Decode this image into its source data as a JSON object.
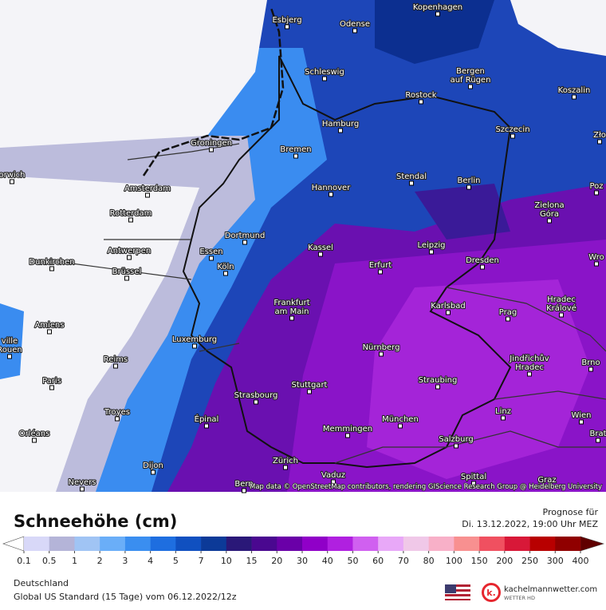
{
  "map": {
    "cities": [
      [
        "Esbjerg"
      ],
      [
        "Odense"
      ],
      [
        "Kopenhagen"
      ],
      [
        "Schleswig"
      ],
      [
        "Bergen",
        "auf Rügen"
      ],
      [
        "Rostock"
      ],
      [
        "Koszalin"
      ],
      [
        "Hamburg"
      ],
      [
        "Szczecin"
      ],
      [
        "Groningen"
      ],
      [
        "Bremen"
      ],
      [
        "Zło"
      ],
      [
        "orwich"
      ],
      [
        "Amsterdam"
      ],
      [
        "Hannover"
      ],
      [
        "Stendal"
      ],
      [
        "Berlin"
      ],
      [
        "Poz"
      ],
      [
        "Rotterdam"
      ],
      [
        "Zielona",
        "Góra"
      ],
      [
        "Dortmund"
      ],
      [
        "Leipzig"
      ],
      [
        "Antwerpen"
      ],
      [
        "Essen"
      ],
      [
        "Kassel"
      ],
      [
        "Dunkirchen"
      ],
      [
        "Erfurt"
      ],
      [
        "Dresden"
      ],
      [
        "Wro"
      ],
      [
        "Brüssel"
      ],
      [
        "Köln"
      ],
      [
        "Frankfurt",
        "am Main"
      ],
      [
        "Karlsbad"
      ],
      [
        "Hradec",
        "Králové"
      ],
      [
        "Prag"
      ],
      [
        "Amiens"
      ],
      [
        "ville",
        "Rouen"
      ],
      [
        "Luxemburg"
      ],
      [
        "Nürnberg"
      ],
      [
        "Jindřichův",
        "Hradec"
      ],
      [
        "Brno"
      ],
      [
        "Reims"
      ],
      [
        "Paris"
      ],
      [
        "Straubing"
      ],
      [
        "Stuttgart"
      ],
      [
        "Strasbourg"
      ],
      [
        "Troyes"
      ],
      [
        "Linz"
      ],
      [
        "Wien"
      ],
      [
        "Épinal"
      ],
      [
        "München"
      ],
      [
        "Memmingen"
      ],
      [
        "Orléans"
      ],
      [
        "Brat"
      ],
      [
        "Salzburg"
      ],
      [
        "Zürich"
      ],
      [
        "Vaduz"
      ],
      [
        "Dijon"
      ],
      [
        "Spittal"
      ],
      [
        "Nevers"
      ],
      [
        "Bern"
      ],
      [
        "Graz"
      ]
    ],
    "credit": "Map data © OpenStreetMap contributors, rendering GIScience Research Group @ Heidelberg University"
  },
  "legend": {
    "title": "Schneehöhe (cm)",
    "ticks": [
      0.1,
      0.5,
      1,
      2,
      3,
      4,
      5,
      7,
      10,
      15,
      20,
      30,
      40,
      50,
      60,
      70,
      80,
      100,
      150,
      200,
      250,
      300,
      400
    ],
    "colors": [
      "#d8d8f8",
      "#b4b4d8",
      "#a0c4f4",
      "#6aaef8",
      "#3a8ef0",
      "#1e6ee0",
      "#1050c0",
      "#0c3a98",
      "#2a1878",
      "#4a0890",
      "#6a00a8",
      "#9000c8",
      "#b020e0",
      "#d060f0",
      "#e8a8f8",
      "#f0c8e8",
      "#f8b0c8",
      "#f89090",
      "#f05060",
      "#d81838",
      "#b80000",
      "#900000"
    ],
    "under_color": "#ffffff",
    "over_color": "#600000"
  },
  "forecast": {
    "label": "Prognose für",
    "time": "Di. 13.12.2022, 19:00 Uhr MEZ"
  },
  "footer": {
    "region": "Deutschland",
    "model": "Global US Standard (15 Tage) vom 06.12.2022/12z"
  },
  "brand": {
    "name": "kachelmannwetter.com",
    "sub": "WETTER HD"
  }
}
